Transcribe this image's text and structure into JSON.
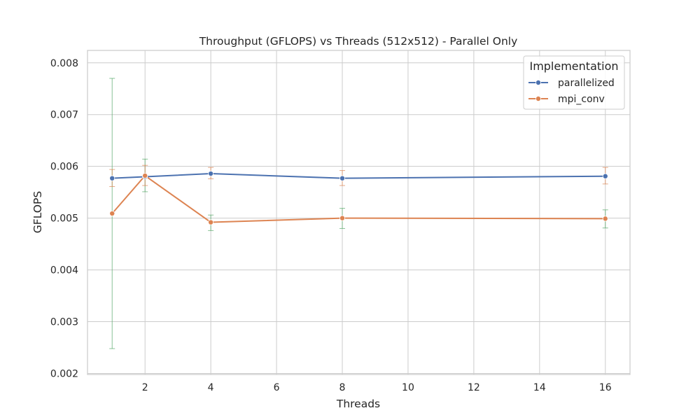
{
  "chart_data": {
    "type": "line",
    "title": "Throughput (GFLOPS) vs Threads (512x512) - Parallel Only",
    "xlabel": "Threads",
    "ylabel": "GFLOPS",
    "xlim": [
      0.25,
      16.75
    ],
    "ylim": [
      0.00198,
      0.00824
    ],
    "xticks": [
      2,
      4,
      6,
      8,
      10,
      12,
      14,
      16
    ],
    "xtick_labels": [
      "2",
      "4",
      "6",
      "8",
      "10",
      "12",
      "14",
      "16"
    ],
    "yticks": [
      0.002,
      0.003,
      0.004,
      0.005,
      0.006,
      0.007,
      0.008
    ],
    "ytick_labels": [
      "0.002",
      "0.003",
      "0.004",
      "0.005",
      "0.006",
      "0.007",
      "0.008"
    ],
    "grid": true,
    "legend": {
      "title": "Implementation",
      "placement": "top-right"
    },
    "series": [
      {
        "name": "parallelized",
        "color": "#4c72b0",
        "x": [
          1,
          2,
          4,
          8,
          16
        ],
        "y": [
          0.00577,
          0.0058,
          0.00586,
          0.00577,
          0.00581
        ],
        "error_color": "#55a868",
        "error_low": [
          0.00248,
          0.00551,
          0.00476,
          0.0048,
          0.00481
        ],
        "error_high": [
          0.0077,
          0.00614,
          0.00506,
          0.00519,
          0.00516
        ]
      },
      {
        "name": "mpi_conv",
        "color": "#dd8452",
        "x": [
          1,
          2,
          4,
          8,
          16
        ],
        "y": [
          0.00509,
          0.00582,
          0.00492,
          0.005,
          0.00499
        ],
        "error_color": "#dd8452",
        "error_low": [
          0.00561,
          0.00563,
          0.00576,
          0.00563,
          0.00566
        ],
        "error_high": [
          0.00594,
          0.00602,
          0.00598,
          0.00592,
          0.00598
        ]
      }
    ]
  }
}
